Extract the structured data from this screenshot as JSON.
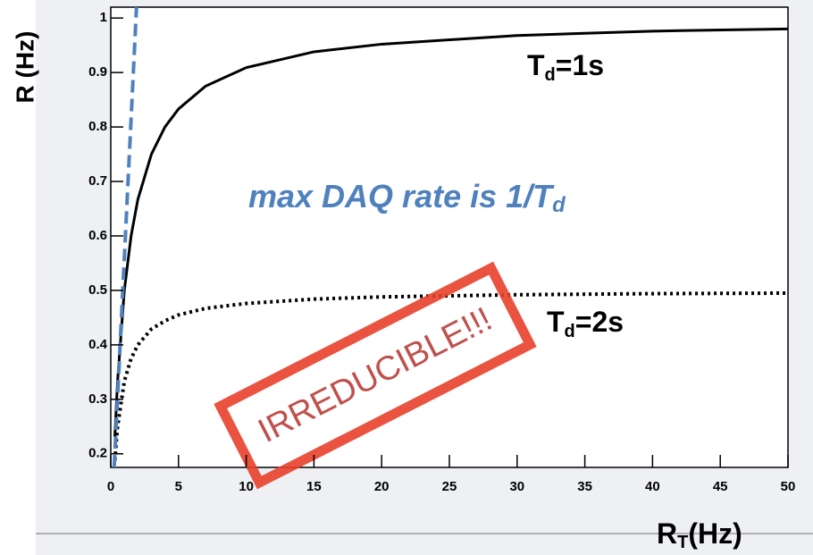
{
  "chart_data": {
    "type": "line",
    "y_label": "R (Hz)",
    "x_label": {
      "main": "R",
      "sub": "T",
      "rest": "(Hz)"
    },
    "xlim": [
      0,
      50
    ],
    "ylim": [
      0.175,
      1.02
    ],
    "xticks": [
      0,
      5,
      10,
      15,
      20,
      25,
      30,
      35,
      40,
      45,
      50
    ],
    "yticks": [
      0.2,
      0.3,
      0.4,
      0.5,
      0.6,
      0.7,
      0.8,
      0.9,
      1
    ],
    "series": [
      {
        "color": "#000000",
        "dash": "solid",
        "x": [
          0.3,
          0.5,
          1,
          1.5,
          2,
          3,
          4,
          5,
          7,
          10,
          15,
          20,
          30,
          40,
          50
        ],
        "values": [
          0.231,
          0.333,
          0.5,
          0.6,
          0.667,
          0.75,
          0.8,
          0.833,
          0.875,
          0.909,
          0.938,
          0.952,
          0.968,
          0.976,
          0.98
        ]
      },
      {
        "color": "#000000",
        "dash": "dotted",
        "x": [
          0.3,
          0.5,
          1,
          1.5,
          2,
          3,
          4,
          5,
          7,
          10,
          15,
          20,
          30,
          40,
          50
        ],
        "values": [
          0.188,
          0.25,
          0.333,
          0.375,
          0.4,
          0.429,
          0.444,
          0.455,
          0.467,
          0.476,
          0.484,
          0.488,
          0.492,
          0.494,
          0.495
        ]
      },
      {
        "color": "#4f81bd",
        "dash": "dashed",
        "x": [
          0.25,
          1.9
        ],
        "values": [
          0.175,
          1.02
        ]
      }
    ],
    "annotations": {
      "td1": {
        "main": "T",
        "sub": "d",
        "rest": "=1s"
      },
      "td2": {
        "main": "T",
        "sub": "d",
        "rest": "=2s"
      },
      "max_rate": {
        "main": "max DAQ rate is 1/T",
        "sub": "d"
      },
      "stamp": "IRREDUCIBLE!!!"
    }
  }
}
